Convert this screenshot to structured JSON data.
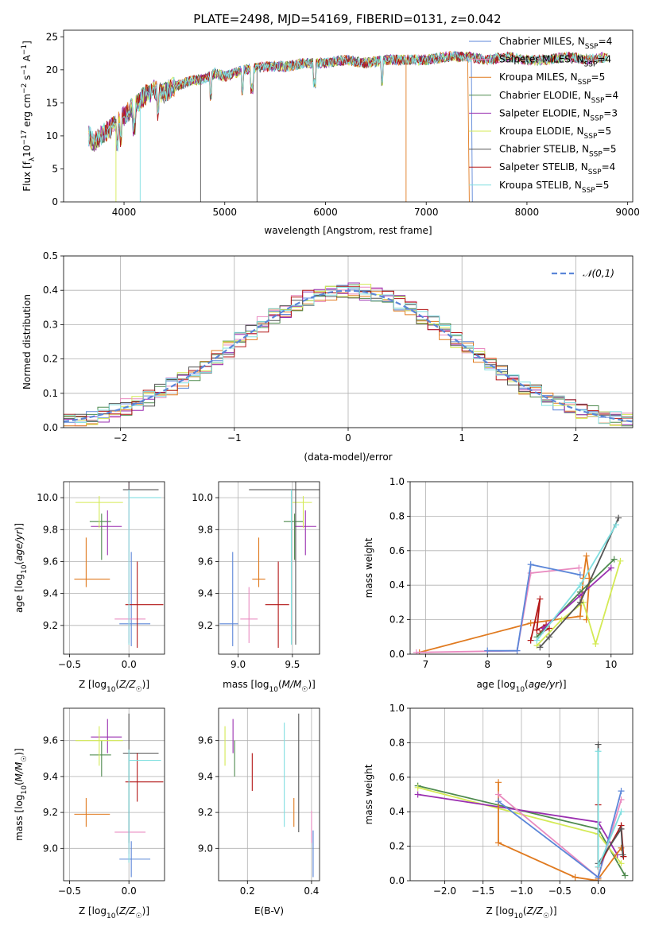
{
  "figure_title": "PLATE=2498, MJD=54169, FIBERID=0131, z=0.042",
  "colors": {
    "Chabrier MILES": "#5b86d8",
    "Salpeter MILES": "#e98bc0",
    "Kroupa MILES": "#e07a1f",
    "Chabrier ELODIE": "#4e8a4e",
    "Salpeter ELODIE": "#9a2fb0",
    "Kroupa ELODIE": "#d4ea55",
    "Chabrier STELIB": "#555555",
    "Salpeter STELIB": "#b31616",
    "Kroupa STELIB": "#80dfe0",
    "normal_curve": "#5b86d8",
    "grid": "#b0b0b0"
  },
  "chart_data": [
    {
      "id": "spectrum",
      "type": "line",
      "xlabel": "wavelength [Angstrom, rest frame]",
      "ylabel": "Flux [f_λ10^-17 erg cm^-2 s^-1 A^-1]",
      "xlim": [
        3400,
        9050
      ],
      "ylim": [
        0,
        26
      ],
      "xticks": [
        4000,
        5000,
        6000,
        7000,
        8000,
        9000
      ],
      "yticks": [
        0,
        5,
        10,
        15,
        20,
        25
      ],
      "grid": false,
      "legend_position": "top-right",
      "x": [
        3650,
        3700,
        3800,
        3900,
        4000,
        4100,
        4200,
        4300,
        4400,
        4500,
        4600,
        4700,
        4800,
        4900,
        5000,
        5200,
        5400,
        5600,
        5800,
        6000,
        6200,
        6400,
        6600,
        6800,
        7000,
        7200,
        7400,
        7600,
        7800,
        8000,
        8200,
        8400,
        8600,
        8800
      ],
      "y": [
        10.0,
        9.0,
        10.5,
        11.5,
        13.0,
        14.5,
        16.0,
        17.0,
        16.5,
        17.5,
        18.0,
        18.5,
        18.5,
        19.5,
        19.0,
        20.0,
        20.5,
        20.5,
        21.0,
        21.0,
        21.5,
        21.0,
        21.5,
        21.5,
        21.5,
        22.0,
        22.0,
        21.5,
        22.0,
        21.5,
        21.5,
        22.0,
        21.5,
        22.0
      ],
      "series": [
        {
          "name": "Chabrier MILES, N_SSP=4",
          "color_key": "Chabrier MILES",
          "x_end": 7450
        },
        {
          "name": "Salpeter MILES, N_SSP=4",
          "color_key": "Salpeter MILES",
          "x_end": 8800
        },
        {
          "name": "Kroupa MILES, N_SSP=5",
          "color_key": "Kroupa MILES",
          "x_end": 7420
        },
        {
          "name": "Chabrier ELODIE, N_SSP=4",
          "color_key": "Chabrier ELODIE",
          "x_end": 8800
        },
        {
          "name": "Salpeter ELODIE, N_SSP=3",
          "color_key": "Salpeter ELODIE",
          "x_end": 8800
        },
        {
          "name": "Kroupa ELODIE, N_SSP=5",
          "color_key": "Kroupa ELODIE",
          "x_end": 8800
        },
        {
          "name": "Chabrier STELIB, N_SSP=5",
          "color_key": "Chabrier STELIB",
          "x_end": 8800
        },
        {
          "name": "Salpeter STELIB, N_SSP=4",
          "color_key": "Salpeter STELIB",
          "x_end": 8800
        },
        {
          "name": "Kroupa STELIB, N_SSP=5",
          "color_key": "Kroupa STELIB",
          "x_end": 8800
        }
      ]
    },
    {
      "id": "residuals",
      "type": "line",
      "xlabel": "(data-model)/error",
      "ylabel": "Normed distribution",
      "xlim": [
        -2.5,
        2.5
      ],
      "ylim": [
        0,
        0.5
      ],
      "xticks": [
        -2,
        -1,
        0,
        1,
        2
      ],
      "yticks": [
        0.0,
        0.1,
        0.2,
        0.3,
        0.4,
        0.5
      ],
      "grid": true,
      "legend_position": "top-right",
      "legend": "𝒩(0,1)",
      "normal": {
        "mean": 0,
        "sigma": 1
      }
    },
    {
      "id": "age-vs-Z",
      "type": "scatter",
      "xlabel": "Z [log10(Z/Z☉)]",
      "ylabel": "age [log10(age/yr)]",
      "xlim": [
        -0.55,
        0.3
      ],
      "ylim": [
        9.02,
        10.1
      ],
      "xticks": [
        -0.5,
        0.0
      ],
      "yticks": [
        9.2,
        9.4,
        9.6,
        9.8,
        10.0
      ],
      "grid": true,
      "points": [
        {
          "color_key": "Chabrier MILES",
          "x": 0.02,
          "xerr": [
            0.1,
            0.16
          ],
          "y": 9.21,
          "yerr": [
            0.14,
            0.45
          ]
        },
        {
          "color_key": "Salpeter MILES",
          "x": 0.0,
          "xerr": [
            0.12,
            0.14
          ],
          "y": 9.24,
          "yerr": [
            0.15,
            0.88
          ]
        },
        {
          "color_key": "Kroupa MILES",
          "x": -0.36,
          "xerr": [
            0.1,
            0.2
          ],
          "y": 9.49,
          "yerr": [
            0.05,
            0.26
          ]
        },
        {
          "color_key": "Chabrier ELODIE",
          "x": -0.23,
          "xerr": [
            0.1,
            0.08
          ],
          "y": 9.85,
          "yerr": [
            0.24,
            0.05
          ]
        },
        {
          "color_key": "Salpeter ELODIE",
          "x": -0.18,
          "xerr": [
            0.14,
            0.12
          ],
          "y": 9.82,
          "yerr": [
            0.18,
            0.1
          ]
        },
        {
          "color_key": "Kroupa ELODIE",
          "x": -0.25,
          "xerr": [
            0.2,
            0.2
          ],
          "y": 9.97,
          "yerr": [
            0.16,
            0.04
          ]
        },
        {
          "color_key": "Chabrier STELIB",
          "x": 0.0,
          "xerr": [
            0.05,
            0.25
          ],
          "y": 10.05,
          "yerr": [
            0.0,
            0.08
          ]
        },
        {
          "color_key": "Salpeter STELIB",
          "x": 0.07,
          "xerr": [
            0.1,
            0.22
          ],
          "y": 9.33,
          "yerr": [
            0.27,
            0.27
          ]
        },
        {
          "color_key": "Kroupa STELIB",
          "x": 0.0,
          "xerr": [
            0.0,
            0.27
          ],
          "y": 10.0,
          "yerr": [
            0.92,
            0.05
          ]
        }
      ]
    },
    {
      "id": "age-vs-mass",
      "type": "scatter",
      "xlabel": "mass [log10(M/M☉)]",
      "ylabel": "",
      "xlim": [
        8.82,
        9.75
      ],
      "ylim": [
        9.02,
        10.1
      ],
      "xticks": [
        9.0,
        9.5
      ],
      "yticks": [
        9.2,
        9.4,
        9.6,
        9.8,
        10.0
      ],
      "grid": true,
      "points": [
        {
          "color_key": "Chabrier MILES",
          "x": 8.95,
          "xerr": [
            0.12,
            0.05
          ],
          "y": 9.21,
          "yerr": [
            0.14,
            0.45
          ]
        },
        {
          "color_key": "Salpeter MILES",
          "x": 9.1,
          "xerr": [
            0.08,
            0.08
          ],
          "y": 9.24,
          "yerr": [
            0.15,
            0.2
          ]
        },
        {
          "color_key": "Kroupa MILES",
          "x": 9.19,
          "xerr": [
            0.06,
            0.06
          ],
          "y": 9.49,
          "yerr": [
            0.05,
            0.26
          ]
        },
        {
          "color_key": "Chabrier ELODIE",
          "x": 9.52,
          "xerr": [
            0.1,
            0.08
          ],
          "y": 9.85,
          "yerr": [
            0.24,
            0.05
          ]
        },
        {
          "color_key": "Salpeter ELODIE",
          "x": 9.62,
          "xerr": [
            0.1,
            0.1
          ],
          "y": 9.82,
          "yerr": [
            0.18,
            0.1
          ]
        },
        {
          "color_key": "Kroupa ELODIE",
          "x": 9.6,
          "xerr": [
            0.1,
            0.08
          ],
          "y": 9.97,
          "yerr": [
            0.16,
            0.04
          ]
        },
        {
          "color_key": "Chabrier STELIB",
          "x": 9.53,
          "xerr": [
            0.43,
            0.22
          ],
          "y": 10.05,
          "yerr": [
            0.97,
            0.08
          ]
        },
        {
          "color_key": "Salpeter STELIB",
          "x": 9.37,
          "xerr": [
            0.12,
            0.1
          ],
          "y": 9.33,
          "yerr": [
            0.27,
            0.27
          ]
        },
        {
          "color_key": "Kroupa STELIB",
          "x": 9.49,
          "xerr": [
            0.0,
            0.0
          ],
          "y": 10.0,
          "yerr": [
            0.92,
            0.05
          ]
        }
      ]
    },
    {
      "id": "weight-vs-age",
      "type": "line",
      "xlabel": "age [log10(age/yr)]",
      "ylabel": "mass weight",
      "xlim": [
        6.75,
        10.35
      ],
      "ylim": [
        0,
        1
      ],
      "xticks": [
        7,
        8,
        9,
        10
      ],
      "yticks": [
        0.0,
        0.2,
        0.4,
        0.6,
        0.8,
        1.0
      ],
      "grid": true,
      "series": [
        {
          "color_key": "Kroupa MILES",
          "x": [
            6.9,
            8.7,
            9.5,
            9.55,
            9.6,
            9.65,
            9.6
          ],
          "y": [
            0.01,
            0.18,
            0.22,
            0.44,
            0.57,
            0.44,
            0.2
          ]
        },
        {
          "color_key": "Salpeter MILES",
          "x": [
            6.85,
            8.48,
            8.7,
            9.48
          ],
          "y": [
            0.01,
            0.02,
            0.47,
            0.5
          ]
        },
        {
          "color_key": "Chabrier MILES",
          "x": [
            8.0,
            8.48,
            8.7,
            9.5
          ],
          "y": [
            0.02,
            0.02,
            0.52,
            0.46
          ]
        },
        {
          "color_key": "Salpeter STELIB",
          "x": [
            8.7,
            8.85,
            8.8,
            8.95,
            8.85,
            9.0
          ],
          "y": [
            0.08,
            0.32,
            0.14,
            0.17,
            0.12,
            0.15
          ]
        },
        {
          "color_key": "Chabrier ELODIE",
          "x": [
            8.8,
            9.5,
            10.05
          ],
          "y": [
            0.1,
            0.36,
            0.55
          ]
        },
        {
          "color_key": "Salpeter ELODIE",
          "x": [
            8.9,
            9.5,
            10.0
          ],
          "y": [
            0.15,
            0.34,
            0.5
          ]
        },
        {
          "color_key": "Kroupa ELODIE",
          "x": [
            8.8,
            9.2,
            9.55,
            9.75,
            10.15
          ],
          "y": [
            0.05,
            0.2,
            0.3,
            0.06,
            0.54
          ]
        },
        {
          "color_key": "Chabrier STELIB",
          "x": [
            8.85,
            9.0,
            9.5,
            10.12
          ],
          "y": [
            0.04,
            0.1,
            0.3,
            0.79
          ]
        },
        {
          "color_key": "Kroupa STELIB",
          "x": [
            8.8,
            9.5,
            10.08
          ],
          "y": [
            0.08,
            0.4,
            0.75
          ]
        }
      ]
    },
    {
      "id": "mass-vs-Z",
      "type": "scatter",
      "xlabel": "Z [log10(Z/Z☉)]",
      "ylabel": "mass [log10(M/M☉)]",
      "xlim": [
        -0.55,
        0.3
      ],
      "ylim": [
        8.82,
        9.78
      ],
      "xticks": [
        -0.5,
        0.0
      ],
      "yticks": [
        9.0,
        9.2,
        9.4,
        9.6
      ],
      "grid": true,
      "points": [
        {
          "color_key": "Chabrier MILES",
          "x": 0.02,
          "xerr": [
            0.1,
            0.16
          ],
          "y": 8.94,
          "yerr": [
            0.1,
            0.1
          ]
        },
        {
          "color_key": "Salpeter MILES",
          "x": 0.0,
          "xerr": [
            0.12,
            0.14
          ],
          "y": 9.09,
          "yerr": [
            0.12,
            0.12
          ]
        },
        {
          "color_key": "Kroupa MILES",
          "x": -0.36,
          "xerr": [
            0.1,
            0.2
          ],
          "y": 9.19,
          "yerr": [
            0.07,
            0.09
          ]
        },
        {
          "color_key": "Chabrier ELODIE",
          "x": -0.23,
          "xerr": [
            0.1,
            0.08
          ],
          "y": 9.52,
          "yerr": [
            0.12,
            0.08
          ]
        },
        {
          "color_key": "Salpeter ELODIE",
          "x": -0.18,
          "xerr": [
            0.14,
            0.12
          ],
          "y": 9.62,
          "yerr": [
            0.09,
            0.1
          ]
        },
        {
          "color_key": "Kroupa ELODIE",
          "x": -0.25,
          "xerr": [
            0.2,
            0.2
          ],
          "y": 9.6,
          "yerr": [
            0.14,
            0.08
          ]
        },
        {
          "color_key": "Chabrier STELIB",
          "x": 0.0,
          "xerr": [
            0.05,
            0.25
          ],
          "y": 9.53,
          "yerr": [
            0.5,
            0.22
          ]
        },
        {
          "color_key": "Salpeter STELIB",
          "x": 0.07,
          "xerr": [
            0.1,
            0.22
          ],
          "y": 9.37,
          "yerr": [
            0.11,
            0.16
          ]
        },
        {
          "color_key": "Kroupa STELIB",
          "x": 0.0,
          "xerr": [
            0.0,
            0.27
          ],
          "y": 9.49,
          "yerr": [
            0.57,
            0.06
          ]
        }
      ]
    },
    {
      "id": "mass-vs-EBV",
      "type": "scatter",
      "xlabel": "E(B-V)",
      "ylabel": "",
      "xlim": [
        0.11,
        0.425
      ],
      "ylim": [
        8.82,
        9.78
      ],
      "xticks": [
        0.2,
        0.4
      ],
      "yticks": [
        9.0,
        9.2,
        9.4,
        9.6
      ],
      "grid": true,
      "points": [
        {
          "color_key": "Chabrier MILES",
          "x": 0.405,
          "y": 8.94,
          "yerr": [
            0.1,
            0.16
          ]
        },
        {
          "color_key": "Salpeter MILES",
          "x": 0.4,
          "y": 9.09,
          "yerr": [
            0.06,
            0.12
          ]
        },
        {
          "color_key": "Kroupa MILES",
          "x": 0.345,
          "y": 9.19,
          "yerr": [
            0.07,
            0.09
          ]
        },
        {
          "color_key": "Chabrier ELODIE",
          "x": 0.16,
          "y": 9.52,
          "yerr": [
            0.12,
            0.08
          ]
        },
        {
          "color_key": "Salpeter ELODIE",
          "x": 0.155,
          "y": 9.62,
          "yerr": [
            0.09,
            0.1
          ]
        },
        {
          "color_key": "Kroupa ELODIE",
          "x": 0.13,
          "y": 9.6,
          "yerr": [
            0.14,
            0.08
          ]
        },
        {
          "color_key": "Chabrier STELIB",
          "x": 0.36,
          "y": 9.53,
          "yerr": [
            0.44,
            0.22
          ]
        },
        {
          "color_key": "Salpeter STELIB",
          "x": 0.215,
          "y": 9.37,
          "yerr": [
            0.05,
            0.16
          ]
        },
        {
          "color_key": "Kroupa STELIB",
          "x": 0.315,
          "y": 9.49,
          "yerr": [
            0.37,
            0.21
          ]
        }
      ]
    },
    {
      "id": "weight-vs-Z",
      "type": "line",
      "xlabel": "Z [log10(Z/Z☉)]",
      "ylabel": "mass weight",
      "xlim": [
        -2.45,
        0.45
      ],
      "ylim": [
        0,
        1
      ],
      "xticks": [
        -2.0,
        -1.5,
        -1.0,
        -0.5,
        0.0
      ],
      "yticks": [
        0.0,
        0.2,
        0.4,
        0.6,
        0.8,
        1.0
      ],
      "grid": true,
      "series": [
        {
          "color_key": "Chabrier ELODIE",
          "x": [
            -2.35,
            0.0,
            0.35
          ],
          "y": [
            0.55,
            0.3,
            0.03
          ]
        },
        {
          "color_key": "Kroupa ELODIE",
          "x": [
            -2.35,
            0.0,
            0.3
          ],
          "y": [
            0.54,
            0.27,
            0.1
          ]
        },
        {
          "color_key": "Salpeter ELODIE",
          "x": [
            -2.35,
            0.0,
            0.25
          ],
          "y": [
            0.5,
            0.34,
            0.15
          ]
        },
        {
          "color_key": "Kroupa MILES",
          "x": [
            -1.3,
            -1.3,
            -0.3,
            0.0,
            0.0,
            0.3
          ],
          "y": [
            0.57,
            0.22,
            0.02,
            0.0,
            0.01,
            0.19
          ]
        },
        {
          "color_key": "Salpeter MILES",
          "x": [
            -1.3,
            0.0,
            0.3
          ],
          "y": [
            0.5,
            0.02,
            0.47
          ]
        },
        {
          "color_key": "Chabrier MILES",
          "x": [
            -1.3,
            0.0,
            0.3
          ],
          "y": [
            0.46,
            0.02,
            0.52
          ]
        },
        {
          "color_key": "Salpeter STELIB",
          "x": [
            0.0,
            0.0,
            0.3,
            0.33
          ],
          "y": [
            0.44,
            0.08,
            0.32,
            0.14
          ]
        },
        {
          "color_key": "Chabrier STELIB",
          "x": [
            0.0,
            0.0,
            0.3,
            0.32
          ],
          "y": [
            0.79,
            0.1,
            0.3,
            0.15
          ]
        },
        {
          "color_key": "Kroupa STELIB",
          "x": [
            0.0,
            0.0,
            0.3
          ],
          "y": [
            0.75,
            0.08,
            0.4
          ]
        }
      ]
    }
  ]
}
